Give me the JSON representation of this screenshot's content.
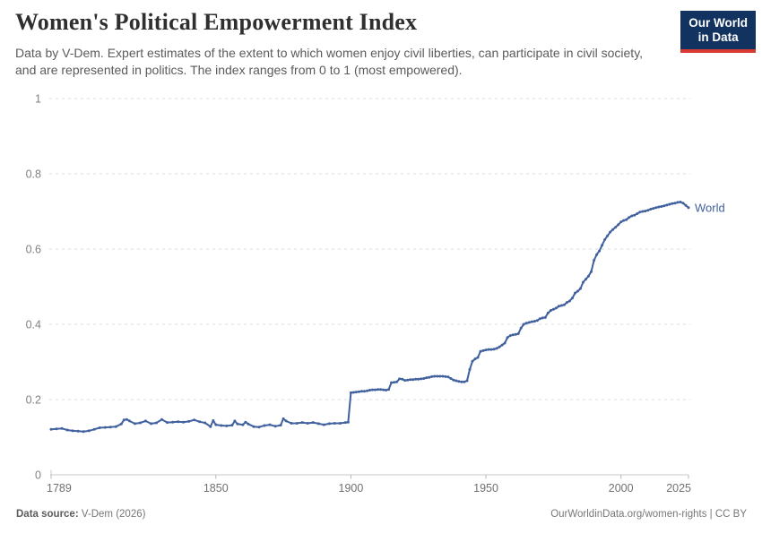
{
  "header": {
    "title": "Women's Political Empowerment Index",
    "subtitle": "Data by V-Dem. Expert estimates of the extent to which women enjoy civil liberties, can participate in civil society, and are represented in politics. The index ranges from 0 to 1 (most empowered).",
    "logo": {
      "line1": "Our World",
      "line2": "in Data",
      "bg_color": "#12325f",
      "accent_color": "#d93a34"
    }
  },
  "footer": {
    "source_label": "Data source:",
    "source_value": " V-Dem (2026)",
    "license_text": "OurWorldinData.org/women-rights | CC BY"
  },
  "chart_data": {
    "type": "line",
    "title": "Women's Political Empowerment Index",
    "xlabel": "",
    "ylabel": "",
    "xlim": [
      1789,
      2025
    ],
    "ylim": [
      0,
      1
    ],
    "x_ticks": [
      1789,
      1850,
      1900,
      1950,
      2000,
      2025
    ],
    "y_ticks": [
      0,
      0.2,
      0.4,
      0.6,
      0.8,
      1
    ],
    "grid": "horizontal-dashed",
    "legend_position": "end-of-line-label",
    "series": [
      {
        "name": "World",
        "color": "#41619e",
        "points": [
          [
            1789,
            0.121
          ],
          [
            1791,
            0.122
          ],
          [
            1793,
            0.123
          ],
          [
            1795,
            0.119
          ],
          [
            1797,
            0.117
          ],
          [
            1799,
            0.116
          ],
          [
            1801,
            0.115
          ],
          [
            1803,
            0.117
          ],
          [
            1805,
            0.121
          ],
          [
            1807,
            0.125
          ],
          [
            1809,
            0.126
          ],
          [
            1811,
            0.127
          ],
          [
            1813,
            0.128
          ],
          [
            1815,
            0.135
          ],
          [
            1816,
            0.146
          ],
          [
            1817,
            0.147
          ],
          [
            1818,
            0.143
          ],
          [
            1820,
            0.136
          ],
          [
            1822,
            0.138
          ],
          [
            1824,
            0.143
          ],
          [
            1826,
            0.136
          ],
          [
            1828,
            0.138
          ],
          [
            1830,
            0.147
          ],
          [
            1832,
            0.139
          ],
          [
            1834,
            0.14
          ],
          [
            1836,
            0.141
          ],
          [
            1838,
            0.14
          ],
          [
            1840,
            0.142
          ],
          [
            1842,
            0.146
          ],
          [
            1844,
            0.141
          ],
          [
            1846,
            0.138
          ],
          [
            1848,
            0.128
          ],
          [
            1849,
            0.144
          ],
          [
            1850,
            0.133
          ],
          [
            1852,
            0.131
          ],
          [
            1854,
            0.13
          ],
          [
            1856,
            0.132
          ],
          [
            1857,
            0.143
          ],
          [
            1858,
            0.135
          ],
          [
            1860,
            0.133
          ],
          [
            1861,
            0.14
          ],
          [
            1862,
            0.135
          ],
          [
            1864,
            0.128
          ],
          [
            1866,
            0.127
          ],
          [
            1868,
            0.131
          ],
          [
            1870,
            0.133
          ],
          [
            1872,
            0.129
          ],
          [
            1874,
            0.132
          ],
          [
            1875,
            0.149
          ],
          [
            1876,
            0.143
          ],
          [
            1878,
            0.137
          ],
          [
            1880,
            0.137
          ],
          [
            1882,
            0.139
          ],
          [
            1884,
            0.137
          ],
          [
            1886,
            0.139
          ],
          [
            1888,
            0.136
          ],
          [
            1890,
            0.133
          ],
          [
            1892,
            0.136
          ],
          [
            1894,
            0.137
          ],
          [
            1896,
            0.137
          ],
          [
            1898,
            0.139
          ],
          [
            1899,
            0.14
          ],
          [
            1900,
            0.218
          ],
          [
            1901,
            0.219
          ],
          [
            1902,
            0.22
          ],
          [
            1903,
            0.221
          ],
          [
            1904,
            0.222
          ],
          [
            1905,
            0.222
          ],
          [
            1906,
            0.223
          ],
          [
            1907,
            0.225
          ],
          [
            1908,
            0.226
          ],
          [
            1909,
            0.226
          ],
          [
            1910,
            0.227
          ],
          [
            1911,
            0.227
          ],
          [
            1912,
            0.226
          ],
          [
            1913,
            0.225
          ],
          [
            1914,
            0.227
          ],
          [
            1915,
            0.245
          ],
          [
            1916,
            0.246
          ],
          [
            1917,
            0.247
          ],
          [
            1918,
            0.255
          ],
          [
            1919,
            0.254
          ],
          [
            1920,
            0.251
          ],
          [
            1921,
            0.252
          ],
          [
            1922,
            0.253
          ],
          [
            1923,
            0.253
          ],
          [
            1924,
            0.254
          ],
          [
            1925,
            0.254
          ],
          [
            1926,
            0.255
          ],
          [
            1927,
            0.256
          ],
          [
            1928,
            0.258
          ],
          [
            1929,
            0.259
          ],
          [
            1930,
            0.261
          ],
          [
            1931,
            0.262
          ],
          [
            1932,
            0.262
          ],
          [
            1933,
            0.262
          ],
          [
            1934,
            0.262
          ],
          [
            1935,
            0.261
          ],
          [
            1936,
            0.26
          ],
          [
            1937,
            0.256
          ],
          [
            1938,
            0.252
          ],
          [
            1939,
            0.25
          ],
          [
            1940,
            0.248
          ],
          [
            1941,
            0.247
          ],
          [
            1942,
            0.247
          ],
          [
            1943,
            0.25
          ],
          [
            1944,
            0.28
          ],
          [
            1945,
            0.302
          ],
          [
            1946,
            0.308
          ],
          [
            1947,
            0.312
          ],
          [
            1948,
            0.328
          ],
          [
            1949,
            0.33
          ],
          [
            1950,
            0.332
          ],
          [
            1951,
            0.333
          ],
          [
            1952,
            0.333
          ],
          [
            1953,
            0.334
          ],
          [
            1954,
            0.336
          ],
          [
            1955,
            0.34
          ],
          [
            1956,
            0.345
          ],
          [
            1957,
            0.35
          ],
          [
            1958,
            0.365
          ],
          [
            1959,
            0.37
          ],
          [
            1960,
            0.372
          ],
          [
            1961,
            0.373
          ],
          [
            1962,
            0.375
          ],
          [
            1963,
            0.39
          ],
          [
            1964,
            0.4
          ],
          [
            1965,
            0.403
          ],
          [
            1966,
            0.405
          ],
          [
            1967,
            0.407
          ],
          [
            1968,
            0.408
          ],
          [
            1969,
            0.41
          ],
          [
            1970,
            0.415
          ],
          [
            1971,
            0.417
          ],
          [
            1972,
            0.418
          ],
          [
            1973,
            0.43
          ],
          [
            1974,
            0.437
          ],
          [
            1975,
            0.44
          ],
          [
            1976,
            0.443
          ],
          [
            1977,
            0.448
          ],
          [
            1978,
            0.45
          ],
          [
            1979,
            0.452
          ],
          [
            1980,
            0.458
          ],
          [
            1981,
            0.462
          ],
          [
            1982,
            0.47
          ],
          [
            1983,
            0.483
          ],
          [
            1984,
            0.488
          ],
          [
            1985,
            0.495
          ],
          [
            1986,
            0.512
          ],
          [
            1987,
            0.52
          ],
          [
            1988,
            0.528
          ],
          [
            1989,
            0.54
          ],
          [
            1990,
            0.57
          ],
          [
            1991,
            0.585
          ],
          [
            1992,
            0.595
          ],
          [
            1993,
            0.61
          ],
          [
            1994,
            0.625
          ],
          [
            1995,
            0.635
          ],
          [
            1996,
            0.645
          ],
          [
            1997,
            0.652
          ],
          [
            1998,
            0.658
          ],
          [
            1999,
            0.665
          ],
          [
            2000,
            0.672
          ],
          [
            2001,
            0.676
          ],
          [
            2002,
            0.678
          ],
          [
            2003,
            0.684
          ],
          [
            2004,
            0.688
          ],
          [
            2005,
            0.69
          ],
          [
            2006,
            0.694
          ],
          [
            2007,
            0.698
          ],
          [
            2008,
            0.7
          ],
          [
            2009,
            0.701
          ],
          [
            2010,
            0.703
          ],
          [
            2011,
            0.706
          ],
          [
            2012,
            0.708
          ],
          [
            2013,
            0.71
          ],
          [
            2014,
            0.712
          ],
          [
            2015,
            0.713
          ],
          [
            2016,
            0.715
          ],
          [
            2017,
            0.717
          ],
          [
            2018,
            0.719
          ],
          [
            2019,
            0.721
          ],
          [
            2020,
            0.722
          ],
          [
            2021,
            0.724
          ],
          [
            2022,
            0.725
          ],
          [
            2023,
            0.722
          ],
          [
            2024,
            0.716
          ],
          [
            2025,
            0.71
          ]
        ]
      }
    ]
  }
}
